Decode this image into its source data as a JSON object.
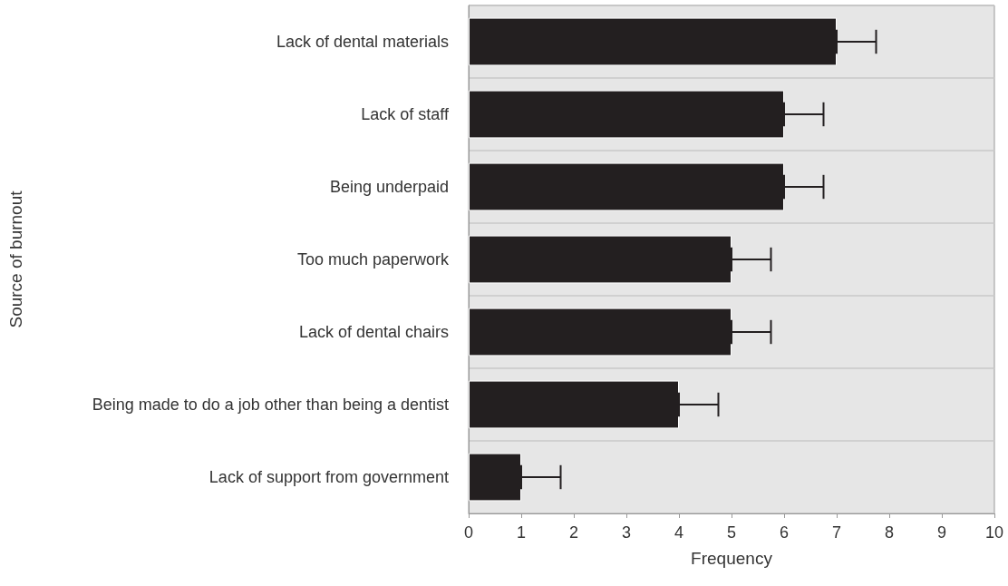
{
  "chart_data": {
    "type": "bar",
    "orientation": "horizontal",
    "xlabel": "Frequency",
    "ylabel": "Source of burnout",
    "categories": [
      "Lack of dental materials",
      "Lack of staff",
      "Being underpaid",
      "Too much paperwork",
      "Lack of dental chairs",
      "Being made to do a job other than being a dentist",
      "Lack of support from government"
    ],
    "values": [
      7,
      6,
      6,
      5,
      5,
      4,
      1
    ],
    "errors": [
      [
        7,
        7.75
      ],
      [
        6,
        6.75
      ],
      [
        6,
        6.75
      ],
      [
        5,
        5.75
      ],
      [
        5,
        5.75
      ],
      [
        4,
        4.75
      ],
      [
        1,
        1.75
      ]
    ],
    "color": "#231f20",
    "xlim": [
      0,
      10
    ],
    "xticks": [
      0,
      1,
      2,
      3,
      4,
      5,
      6,
      7,
      8,
      9,
      10
    ],
    "grid": "y"
  }
}
